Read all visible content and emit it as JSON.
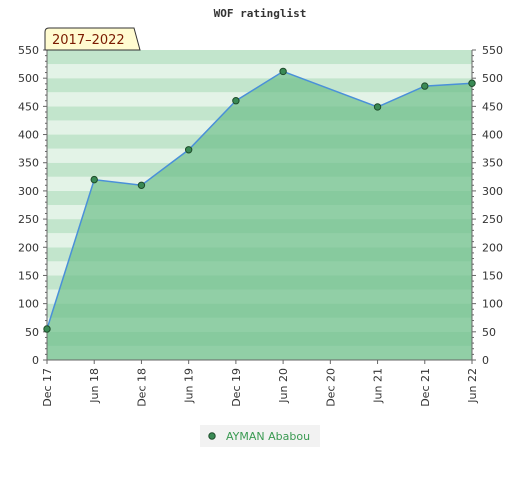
{
  "chart_data": {
    "type": "area",
    "title": "WOF ratinglist",
    "period_label": "2017–2022",
    "xlabel": "",
    "ylabel": "",
    "x_ticks": [
      "Dec 17",
      "Jun 18",
      "Dec 18",
      "Jun 19",
      "Dec 19",
      "Jun 20",
      "Dec 20",
      "Jun 21",
      "Dec 21",
      "Jun 22"
    ],
    "y_ticks": [
      0,
      50,
      100,
      150,
      200,
      250,
      300,
      350,
      400,
      450,
      500,
      550
    ],
    "ylim": [
      0,
      550
    ],
    "ylim_top_band": 550,
    "grid": false,
    "legend_position": "bottom-center",
    "series": [
      {
        "name": "AYMAN Ababou",
        "x": [
          "Dec 17",
          "Jun 18",
          "Dec 18",
          "Jun 19",
          "Dec 19",
          "Jun 20",
          "Jun 21",
          "Dec 21",
          "Jun 22"
        ],
        "values": [
          55,
          320,
          310,
          373,
          460,
          512,
          449,
          486,
          491
        ]
      }
    ],
    "colors": {
      "line": "#4a90d9",
      "marker": "#3a8a55",
      "fill": "#6dbf8a",
      "band_light": "#e3f3e7",
      "band_dark": "#c2e5cc",
      "badge_bg": "#fffbd0",
      "badge_border": "#333333",
      "legend_text": "#3a9a52"
    }
  }
}
